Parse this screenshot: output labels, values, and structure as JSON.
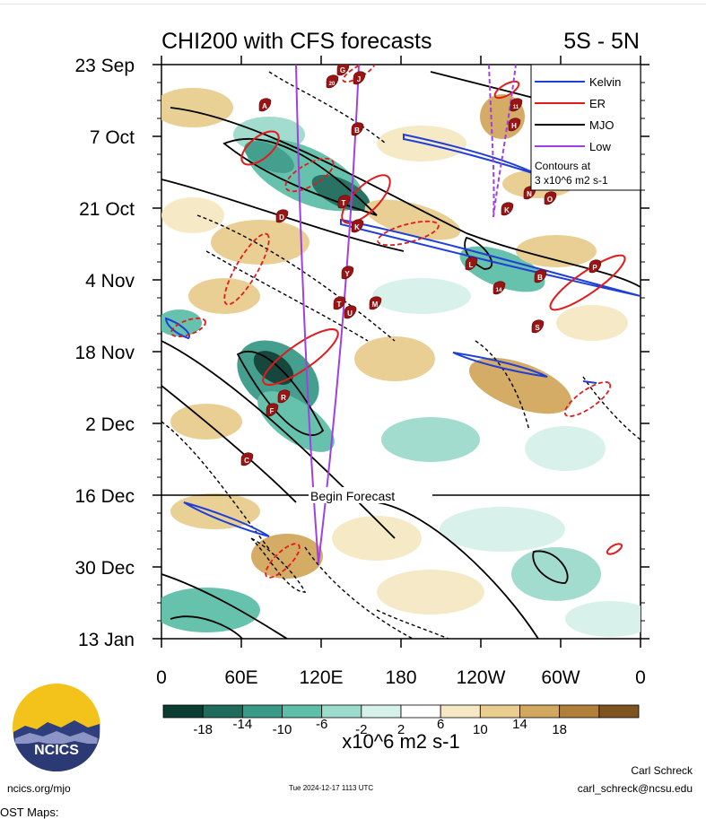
{
  "chart_data": {
    "type": "heatmap",
    "title": "CHI200 with CFS forecasts",
    "subtitle_right": "5S - 5N",
    "y_tick_labels": [
      "23 Sep",
      "7 Oct",
      "21 Oct",
      "4 Nov",
      "18 Nov",
      "2 Dec",
      "16 Dec",
      "30 Dec",
      "13 Jan"
    ],
    "x_tick_labels": [
      "0",
      "60E",
      "120E",
      "180",
      "120W",
      "60W",
      "0"
    ],
    "colorbar": {
      "labels": [
        "-18",
        "-14",
        "-10",
        "-6",
        "-2",
        "2",
        "6",
        "10",
        "14",
        "18"
      ],
      "colors": [
        "#0b3d33",
        "#1f6b5c",
        "#3a9a88",
        "#5ebfa9",
        "#9ddbcd",
        "#d6f1ea",
        "#ffffff",
        "#f6e8c4",
        "#e8cd8f",
        "#d2a85e",
        "#b0803a",
        "#7e5420"
      ],
      "units": "x10^6 m2 s-1"
    },
    "legend": [
      {
        "label": "Kelvin",
        "color": "#1f3fd6"
      },
      {
        "label": "ER",
        "color": "#e21b1b"
      },
      {
        "label": "MJO",
        "color": "#000000"
      },
      {
        "label": "Low",
        "color": "#a040e0"
      }
    ],
    "legend_note": [
      "Contours at",
      "3 x10^6 m2 s-1"
    ],
    "forecast_label": "Begin Forecast",
    "storm_markers": [
      "G",
      "J",
      "20",
      "A",
      "B",
      "11",
      "H",
      "T",
      "K",
      "D",
      "N",
      "K",
      "O",
      "Y",
      "L",
      "B",
      "P",
      "U",
      "T",
      "M",
      "14",
      "S",
      "R",
      "F",
      "C"
    ]
  },
  "logo": {
    "text": "NCICS"
  },
  "footer": {
    "site": "ncics.org/mjo",
    "timestamp": "Tue 2024-12-17 1113 UTC",
    "author": "Carl Schreck",
    "email": "carl_schreck@ncsu.edu"
  },
  "below_text": "OST Maps:"
}
